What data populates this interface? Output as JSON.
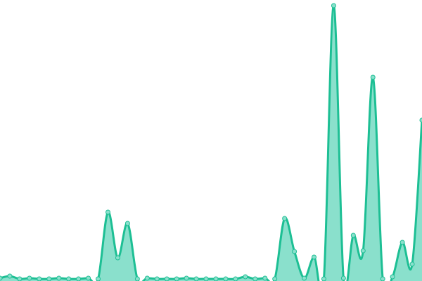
{
  "chart_data": {
    "type": "area",
    "title": "",
    "xlabel": "",
    "ylabel": "",
    "smooth": true,
    "grid": false,
    "legend": "none",
    "ylim": [
      0,
      389
    ],
    "x": [
      0,
      1,
      2,
      3,
      4,
      5,
      6,
      7,
      8,
      9,
      10,
      11,
      12,
      13,
      14,
      15,
      16,
      17,
      18,
      19,
      20,
      21,
      22,
      23,
      24,
      25,
      26,
      27,
      28,
      29,
      30,
      31,
      32,
      33,
      34,
      35,
      36,
      37,
      38,
      39,
      40,
      41,
      42,
      43
    ],
    "values": [
      1,
      4,
      0,
      1,
      0,
      0,
      1,
      0,
      0,
      1,
      0,
      95,
      30,
      79,
      0,
      1,
      0,
      0,
      0,
      1,
      0,
      0,
      0,
      0,
      0,
      3,
      0,
      1,
      0,
      86,
      39,
      1,
      31,
      0,
      389,
      1,
      62,
      40,
      287,
      0,
      3,
      52,
      21,
      226
    ],
    "colors": {
      "line": "#1dbf94",
      "fill": "#8ae0cc",
      "marker_fill": "#8ae0cc",
      "marker_stroke": "#1dbf94"
    }
  }
}
